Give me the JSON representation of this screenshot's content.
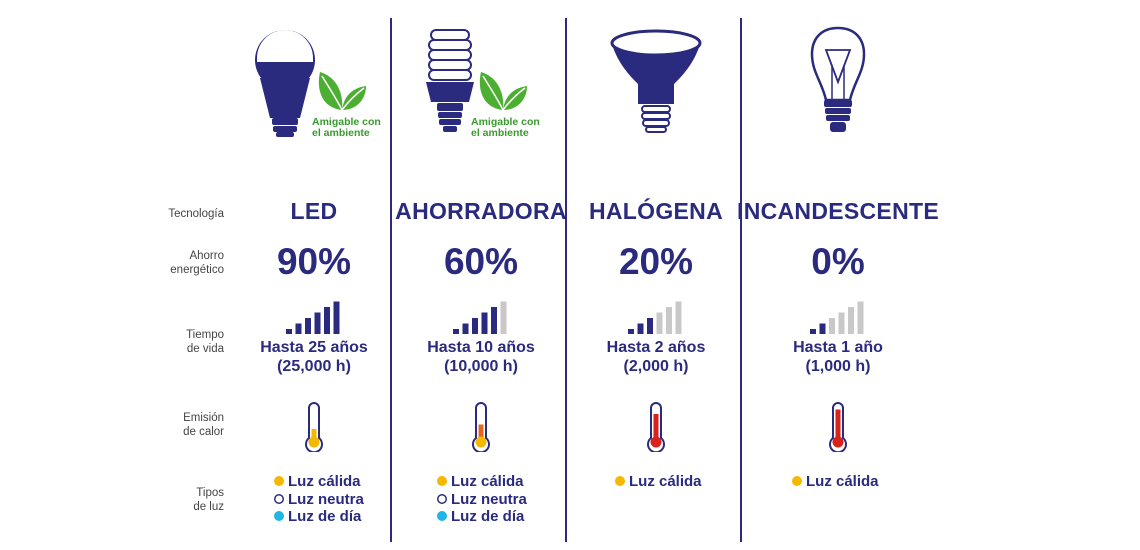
{
  "row_labels": {
    "tech": "Tecnología",
    "savings_1": "Ahorro",
    "savings_2": "energético",
    "life_1": "Tiempo",
    "life_2": "de vida",
    "heat_1": "Emisión",
    "heat_2": "de calor",
    "light_1": "Tipos",
    "light_2": "de luz"
  },
  "eco_badge": {
    "line1": "Amigable con",
    "line2": "el ambiente"
  },
  "columns": [
    {
      "tech": "LED",
      "savings": "90%",
      "life_1": "Hasta 25 años",
      "life_2": "(25,000 h)",
      "lifespan_bars_filled": 5,
      "heat_level": 0.3,
      "eco": true,
      "light_types": [
        {
          "label": "Luz cálida",
          "dot": "warm"
        },
        {
          "label": "Luz neutra",
          "dot": "neutral"
        },
        {
          "label": "Luz de día",
          "dot": "day"
        }
      ]
    },
    {
      "tech": "AHORRADORA",
      "savings": "60%",
      "life_1": "Hasta 10 años",
      "life_2": "(10,000 h)",
      "lifespan_bars_filled": 4,
      "heat_level": 0.45,
      "eco": true,
      "light_types": [
        {
          "label": "Luz cálida",
          "dot": "warm"
        },
        {
          "label": "Luz neutra",
          "dot": "neutral"
        },
        {
          "label": "Luz de día",
          "dot": "day"
        }
      ]
    },
    {
      "tech": "HALÓGENA",
      "savings": "20%",
      "life_1": "Hasta 2 años",
      "life_2": "(2,000 h)",
      "lifespan_bars_filled": 2,
      "heat_level": 0.8,
      "eco": false,
      "light_types": [
        {
          "label": "Luz cálida",
          "dot": "warm"
        }
      ]
    },
    {
      "tech": "INCANDESCENTE",
      "savings": "0%",
      "life_1": "Hasta 1 año",
      "life_2": "(1,000 h)",
      "lifespan_bars_filled": 1,
      "heat_level": 0.95,
      "eco": false,
      "light_types": [
        {
          "label": "Luz cálida",
          "dot": "warm"
        }
      ]
    }
  ],
  "colors": {
    "navy": "#2a2a7e",
    "bar_empty": "#c8c8c8",
    "warm": "#f5b800",
    "neutral": "#ffffff",
    "day": "#1fb5e6",
    "eco_green": "#3a9a2e",
    "leaf_green": "#4caf32"
  }
}
